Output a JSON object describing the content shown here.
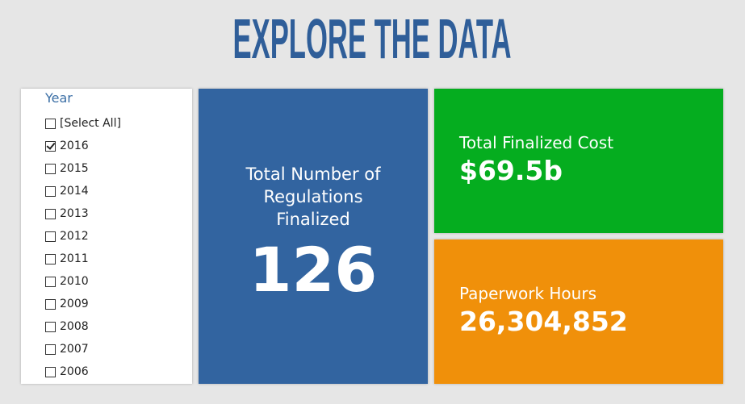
{
  "header": {
    "title": "EXPLORE THE DATA"
  },
  "filter": {
    "label": "Year",
    "options": [
      {
        "text": "[Select All]",
        "checked": false
      },
      {
        "text": "2016",
        "checked": true
      },
      {
        "text": "2015",
        "checked": false
      },
      {
        "text": "2014",
        "checked": false
      },
      {
        "text": "2013",
        "checked": false
      },
      {
        "text": "2012",
        "checked": false
      },
      {
        "text": "2011",
        "checked": false
      },
      {
        "text": "2010",
        "checked": false
      },
      {
        "text": "2009",
        "checked": false
      },
      {
        "text": "2008",
        "checked": false
      },
      {
        "text": "2007",
        "checked": false
      },
      {
        "text": "2006",
        "checked": false
      }
    ]
  },
  "tiles": [
    {
      "label": "Total Number of Regulations Finalized",
      "value": "126"
    },
    {
      "label": "Total Finalized Cost",
      "value": "$69.5b"
    },
    {
      "label": "Paperwork Hours",
      "value": "26,304,852"
    }
  ]
}
